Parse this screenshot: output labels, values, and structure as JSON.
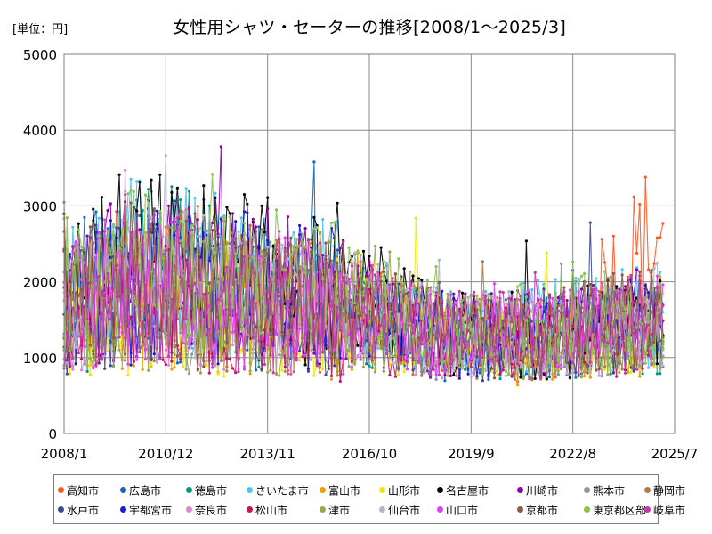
{
  "chart_data": {
    "type": "line",
    "title": "女性用シャツ・セーターの推移[2008/1～2025/3]",
    "unit_label": "[単位：円]",
    "ylim": [
      0,
      5000
    ],
    "yticks": [
      0,
      1000,
      2000,
      3000,
      4000,
      5000
    ],
    "xlim": [
      "2008/1",
      "2025/7"
    ],
    "xticks": [
      "2008/1",
      "2010/12",
      "2013/11",
      "2016/10",
      "2019/9",
      "2022/8",
      "2025/7"
    ],
    "grid": true,
    "legend_position": "bottom",
    "series": [
      {
        "name": "高知市",
        "color": "#ff5722",
        "start": 1500,
        "values": [
          [
            2008,
            1700
          ],
          [
            2010,
            2000
          ],
          [
            2013,
            1900
          ],
          [
            2016,
            1700
          ],
          [
            2019,
            1300
          ],
          [
            2022,
            1200
          ],
          [
            2025.2,
            2700
          ]
        ]
      },
      {
        "name": "広島市",
        "color": "#1565c0",
        "start": 1600,
        "values": [
          [
            2008,
            1800
          ],
          [
            2010,
            2100
          ],
          [
            2013,
            1800
          ],
          [
            2016,
            1600
          ],
          [
            2019,
            1200
          ],
          [
            2022,
            1300
          ],
          [
            2025.2,
            1500
          ]
        ]
      },
      {
        "name": "徳島市",
        "color": "#009688",
        "start": 1400,
        "values": [
          [
            2008,
            1600
          ],
          [
            2011,
            2200
          ],
          [
            2013,
            1900
          ],
          [
            2016,
            1500
          ],
          [
            2019,
            1200
          ],
          [
            2022,
            1300
          ],
          [
            2025.2,
            1400
          ]
        ]
      },
      {
        "name": "さいたま市",
        "color": "#4fc3f7",
        "start": 1700,
        "values": [
          [
            2008,
            1900
          ],
          [
            2010,
            2200
          ],
          [
            2013,
            2000
          ],
          [
            2016,
            1800
          ],
          [
            2019,
            1400
          ],
          [
            2022,
            1400
          ],
          [
            2025.2,
            1600
          ]
        ]
      },
      {
        "name": "富山市",
        "color": "#e6a100",
        "start": 1300,
        "values": [
          [
            2008,
            1500
          ],
          [
            2010,
            1800
          ],
          [
            2013,
            1700
          ],
          [
            2016,
            1500
          ],
          [
            2019,
            1200
          ],
          [
            2022,
            1100
          ],
          [
            2025.2,
            1300
          ]
        ]
      },
      {
        "name": "山形市",
        "color": "#f2e600",
        "start": 1200,
        "values": [
          [
            2008,
            1400
          ],
          [
            2010,
            1700
          ],
          [
            2013,
            1600
          ],
          [
            2016,
            1500
          ],
          [
            2019,
            1300
          ],
          [
            2022,
            1200
          ],
          [
            2025.2,
            1400
          ]
        ]
      },
      {
        "name": "名古屋市",
        "color": "#000000",
        "start": 1800,
        "values": [
          [
            2008,
            2000
          ],
          [
            2010,
            2300
          ],
          [
            2013,
            2100
          ],
          [
            2016,
            1800
          ],
          [
            2019,
            1300
          ],
          [
            2022,
            1300
          ],
          [
            2025.2,
            1500
          ]
        ]
      },
      {
        "name": "川崎市",
        "color": "#8e00a6",
        "start": 1700,
        "values": [
          [
            2008,
            1900
          ],
          [
            2010,
            2100
          ],
          [
            2013,
            2000
          ],
          [
            2016,
            1700
          ],
          [
            2019,
            1300
          ],
          [
            2022,
            1300
          ],
          [
            2025.2,
            1600
          ]
        ]
      },
      {
        "name": "熊本市",
        "color": "#8c96a0",
        "start": 1400,
        "values": [
          [
            2008,
            1600
          ],
          [
            2010,
            1800
          ],
          [
            2013,
            1700
          ],
          [
            2016,
            1500
          ],
          [
            2019,
            1200
          ],
          [
            2022,
            1200
          ],
          [
            2025.2,
            1400
          ]
        ]
      },
      {
        "name": "静岡市",
        "color": "#b07a45",
        "start": 1500,
        "values": [
          [
            2008,
            1700
          ],
          [
            2010,
            1900
          ],
          [
            2013,
            1800
          ],
          [
            2016,
            1600
          ],
          [
            2019,
            1300
          ],
          [
            2022,
            1200
          ],
          [
            2025.2,
            1500
          ]
        ]
      },
      {
        "name": "水戸市",
        "color": "#3f4a8c",
        "start": 1500,
        "values": [
          [
            2008,
            1700
          ],
          [
            2010,
            2000
          ],
          [
            2013,
            1800
          ],
          [
            2016,
            1600
          ],
          [
            2019,
            1200
          ],
          [
            2022,
            1200
          ],
          [
            2025.2,
            1400
          ]
        ]
      },
      {
        "name": "宇都宮市",
        "color": "#1a1adb",
        "start": 1600,
        "values": [
          [
            2008,
            1800
          ],
          [
            2010,
            2000
          ],
          [
            2013,
            1900
          ],
          [
            2016,
            1700
          ],
          [
            2019,
            1300
          ],
          [
            2022,
            1300
          ],
          [
            2025.2,
            1500
          ]
        ]
      },
      {
        "name": "奈良市",
        "color": "#d98ad6",
        "start": 1500,
        "values": [
          [
            2008,
            1700
          ],
          [
            2010,
            1900
          ],
          [
            2013,
            1800
          ],
          [
            2016,
            1600
          ],
          [
            2019,
            1300
          ],
          [
            2022,
            1300
          ],
          [
            2025.2,
            1500
          ]
        ]
      },
      {
        "name": "松山市",
        "color": "#c2185b",
        "start": 1400,
        "values": [
          [
            2008,
            1600
          ],
          [
            2010,
            1900
          ],
          [
            2013,
            1700
          ],
          [
            2016,
            1500
          ],
          [
            2019,
            1200
          ],
          [
            2022,
            1200
          ],
          [
            2025.2,
            1400
          ]
        ]
      },
      {
        "name": "津市",
        "color": "#9aa84a",
        "start": 1400,
        "values": [
          [
            2008,
            1600
          ],
          [
            2010,
            1800
          ],
          [
            2013,
            1700
          ],
          [
            2016,
            1600
          ],
          [
            2019,
            1400
          ],
          [
            2022,
            1200
          ],
          [
            2025.2,
            1400
          ]
        ]
      },
      {
        "name": "仙台市",
        "color": "#b0b7c4",
        "start": 1600,
        "values": [
          [
            2008,
            1800
          ],
          [
            2010,
            2000
          ],
          [
            2013,
            1900
          ],
          [
            2016,
            1700
          ],
          [
            2019,
            1300
          ],
          [
            2022,
            1300
          ],
          [
            2025.2,
            1600
          ]
        ]
      },
      {
        "name": "山口市",
        "color": "#e040fb",
        "start": 1500,
        "values": [
          [
            2008,
            1700
          ],
          [
            2010,
            1900
          ],
          [
            2013,
            1800
          ],
          [
            2016,
            1600
          ],
          [
            2019,
            1300
          ],
          [
            2022,
            1300
          ],
          [
            2025.2,
            1500
          ]
        ]
      },
      {
        "name": "京都市",
        "color": "#8d5a4a",
        "start": 1600,
        "values": [
          [
            2008,
            1800
          ],
          [
            2010,
            2000
          ],
          [
            2013,
            1900
          ],
          [
            2016,
            1700
          ],
          [
            2019,
            1300
          ],
          [
            2022,
            1300
          ],
          [
            2025.2,
            1600
          ]
        ]
      },
      {
        "name": "東京都区部",
        "color": "#8bc34a",
        "start": 1700,
        "values": [
          [
            2008,
            1900
          ],
          [
            2010,
            2100
          ],
          [
            2013,
            2000
          ],
          [
            2016,
            1800
          ],
          [
            2019,
            1400
          ],
          [
            2022,
            1400
          ],
          [
            2025.2,
            1600
          ]
        ]
      },
      {
        "name": "岐阜市",
        "color": "#c837ab",
        "start": 1500,
        "values": [
          [
            2008,
            1700
          ],
          [
            2010,
            1900
          ],
          [
            2013,
            1800
          ],
          [
            2016,
            1600
          ],
          [
            2019,
            1300
          ],
          [
            2022,
            1300
          ],
          [
            2025.2,
            1500
          ]
        ]
      }
    ]
  }
}
